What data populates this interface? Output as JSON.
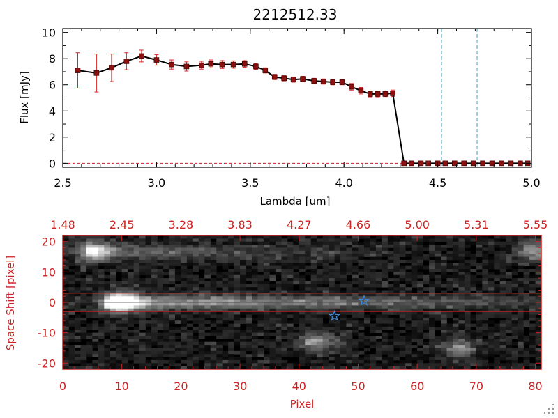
{
  "chart_data": [
    {
      "type": "line",
      "title": "2212512.33",
      "xlabel": "Lambda [um]",
      "ylabel": "Flux [mJy]",
      "xlim": [
        2.5,
        5.0
      ],
      "ylim": [
        -0.3,
        10.3
      ],
      "x_ticks": [
        "2.5",
        "3.0",
        "3.5",
        "4.0",
        "4.5",
        "5.0"
      ],
      "y_ticks": [
        "0",
        "2",
        "4",
        "6",
        "8",
        "10"
      ],
      "vlines": [
        4.52,
        4.71
      ],
      "hline_zero": true,
      "series": [
        {
          "name": "flux",
          "x": [
            2.58,
            2.68,
            2.76,
            2.84,
            2.92,
            3.0,
            3.08,
            3.16,
            3.24,
            3.29,
            3.35,
            3.41,
            3.47,
            3.53,
            3.58,
            3.63,
            3.68,
            3.73,
            3.78,
            3.84,
            3.89,
            3.94,
            3.99,
            4.04,
            4.09,
            4.14,
            4.18,
            4.22,
            4.26,
            4.32,
            4.36,
            4.41,
            4.45,
            4.5,
            4.54,
            4.59,
            4.64,
            4.69,
            4.74,
            4.79,
            4.84,
            4.89,
            4.94,
            4.98
          ],
          "y": [
            7.1,
            6.9,
            7.3,
            7.8,
            8.2,
            7.9,
            7.55,
            7.4,
            7.5,
            7.6,
            7.55,
            7.55,
            7.6,
            7.4,
            7.1,
            6.6,
            6.5,
            6.4,
            6.45,
            6.3,
            6.25,
            6.2,
            6.2,
            5.85,
            5.55,
            5.3,
            5.3,
            5.3,
            5.35,
            0,
            0,
            0,
            0,
            0,
            0,
            0,
            0,
            0,
            0,
            0,
            0,
            0,
            0,
            0
          ],
          "err": [
            1.35,
            1.45,
            1.05,
            0.65,
            0.45,
            0.4,
            0.35,
            0.35,
            0.3,
            0.3,
            0.3,
            0.28,
            0.25,
            0.22,
            0.2,
            0.2,
            0.2,
            0.2,
            0.2,
            0.2,
            0.2,
            0.2,
            0.2,
            0.25,
            0.25,
            0.22,
            0.22,
            0.2,
            0.25,
            0,
            0,
            0,
            0,
            0,
            0,
            0,
            0,
            0,
            0,
            0,
            0,
            0,
            0,
            0
          ]
        }
      ]
    },
    {
      "type": "heatmap",
      "xlabel": "Pixel",
      "ylabel": "Space Shift [pixel]",
      "xlim": [
        0,
        81
      ],
      "ylim": [
        -22,
        22
      ],
      "x_ticks": [
        "0",
        "10",
        "20",
        "30",
        "40",
        "50",
        "60",
        "70",
        "80"
      ],
      "y_ticks": [
        "-20",
        "-10",
        "0",
        "10",
        "20"
      ],
      "top_axis_labels": [
        "1.48",
        "2.45",
        "3.28",
        "3.83",
        "4.27",
        "4.66",
        "5.00",
        "5.31",
        "5.55"
      ],
      "extraction_box": [
        -3,
        3
      ],
      "star_markers": [
        {
          "pixel": 46,
          "shift": -4.5
        },
        {
          "pixel": 51,
          "shift": 0.5
        }
      ],
      "sources": [
        {
          "pixel": 10,
          "shift": 0,
          "peak": 1.0
        },
        {
          "pixel": 5,
          "shift": 17,
          "peak": 0.6
        },
        {
          "pixel": 43,
          "shift": -13,
          "peak": 0.5
        },
        {
          "pixel": 67,
          "shift": -15,
          "peak": 0.4
        },
        {
          "pixel": 80,
          "shift": 17,
          "peak": 0.5
        }
      ]
    }
  ],
  "colors": {
    "axis_red": "#cc2222",
    "data_marker": "#8b1010",
    "error_bar": "#dd2222",
    "vline_cyan": "#3aa3c8",
    "star_blue": "#3a86d8"
  }
}
